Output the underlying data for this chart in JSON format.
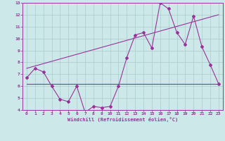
{
  "bg_color": "#cce8e8",
  "grid_color": "#aacccc",
  "line_color": "#993399",
  "xlim": [
    -0.5,
    23.5
  ],
  "ylim": [
    4,
    13
  ],
  "xlabel": "Windchill (Refroidissement éolien,°C)",
  "xticks": [
    0,
    1,
    2,
    3,
    4,
    5,
    6,
    7,
    8,
    9,
    10,
    11,
    12,
    13,
    14,
    15,
    16,
    17,
    18,
    19,
    20,
    21,
    22,
    23
  ],
  "yticks": [
    4,
    5,
    6,
    7,
    8,
    9,
    10,
    11,
    12,
    13
  ],
  "series1_x": [
    0,
    1,
    2,
    3,
    4,
    5,
    6,
    7,
    8,
    9,
    10,
    11,
    12,
    13,
    14,
    15,
    16,
    17,
    18,
    19,
    20,
    21,
    22,
    23
  ],
  "series1_y": [
    6.7,
    7.5,
    7.2,
    6.0,
    4.9,
    4.7,
    6.0,
    3.8,
    4.3,
    4.2,
    4.3,
    6.0,
    8.4,
    10.3,
    10.5,
    9.2,
    13.0,
    12.5,
    10.5,
    9.5,
    11.9,
    9.3,
    7.8,
    6.2
  ],
  "series2_x": [
    0,
    23
  ],
  "series2_y": [
    6.2,
    6.2
  ],
  "series3_x": [
    0,
    23
  ],
  "series3_y": [
    7.5,
    12.0
  ],
  "marker": "D",
  "markersize": 2.0,
  "linewidth": 0.8
}
